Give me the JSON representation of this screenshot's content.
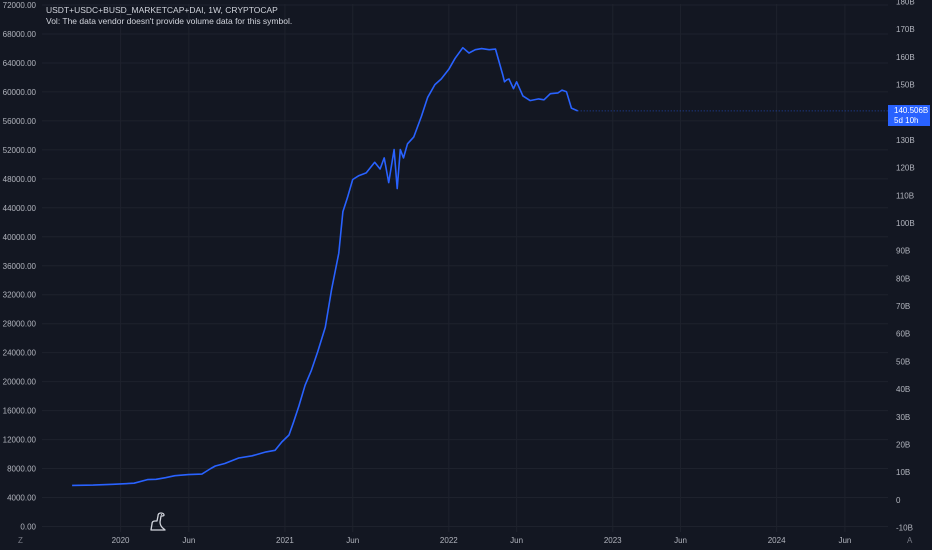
{
  "legend": {
    "symbol_line": "USDT+USDC+BUSD_MARKETCAP+DAI, 1W, CRYPTOCAP",
    "volume_note": "Vol: The data vendor doesn't provide volume data for this symbol."
  },
  "price_badge": {
    "value": "140.506B",
    "countdown": "5d 10h",
    "color": "#2962ff"
  },
  "corner": {
    "left": "Z",
    "right": "A"
  },
  "colors": {
    "background": "#131722",
    "grid": "#1e222d",
    "line": "#2962ff",
    "text": "#b2b5be"
  },
  "icons": {
    "logo": "tradingview-dino-icon"
  },
  "chart_data": {
    "type": "line",
    "x_type": "date",
    "left_axis": {
      "ylim": [
        0,
        72000
      ],
      "ticks": [
        "0.00",
        "4000.00",
        "8000.00",
        "12000.00",
        "16000.00",
        "20000.00",
        "24000.00",
        "28000.00",
        "32000.00",
        "36000.00",
        "40000.00",
        "44000.00",
        "48000.00",
        "52000.00",
        "56000.00",
        "60000.00",
        "64000.00",
        "68000.00",
        "72000.00"
      ]
    },
    "right_axis": {
      "ylim": [
        -10,
        180
      ],
      "ticks": [
        "-10B",
        "0",
        "10B",
        "20B",
        "30B",
        "40B",
        "50B",
        "60B",
        "70B",
        "80B",
        "90B",
        "100B",
        "110B",
        "120B",
        "130B",
        "140B",
        "150B",
        "160B",
        "170B",
        "180B"
      ]
    },
    "x_ticks": [
      {
        "date": "2020-01-01",
        "label": "2020"
      },
      {
        "date": "2020-06-01",
        "label": "Jun"
      },
      {
        "date": "2021-01-01",
        "label": "2021"
      },
      {
        "date": "2021-06-01",
        "label": "Jun"
      },
      {
        "date": "2022-01-01",
        "label": "2022"
      },
      {
        "date": "2022-06-01",
        "label": "Jun"
      },
      {
        "date": "2023-01-01",
        "label": "2023"
      },
      {
        "date": "2023-06-01",
        "label": "Jun"
      },
      {
        "date": "2024-01-01",
        "label": "2024"
      },
      {
        "date": "2024-06-01",
        "label": "Jun"
      }
    ],
    "xlim": [
      "2019-07-10",
      "2024-09-05"
    ],
    "grid": true,
    "series": [
      {
        "x": [
          "2019-09-15",
          "2019-11-01",
          "2019-12-15",
          "2020-01-31",
          "2020-03-01",
          "2020-03-20",
          "2020-04-10",
          "2020-05-01",
          "2020-05-31",
          "2020-06-30",
          "2020-07-20",
          "2020-07-30",
          "2020-08-20",
          "2020-09-20",
          "2020-10-20",
          "2020-11-20",
          "2020-12-10",
          "2020-12-25",
          "2021-01-10",
          "2021-01-20",
          "2021-02-01",
          "2021-02-15",
          "2021-03-01",
          "2021-03-15",
          "2021-04-01",
          "2021-04-15",
          "2021-05-01",
          "2021-05-10",
          "2021-05-20",
          "2021-06-01",
          "2021-06-15",
          "2021-07-01",
          "2021-07-20",
          "2021-08-01",
          "2021-08-10",
          "2021-08-20",
          "2021-09-01",
          "2021-09-08",
          "2021-09-15",
          "2021-09-22",
          "2021-10-01",
          "2021-10-15",
          "2021-11-01",
          "2021-11-15",
          "2021-12-01",
          "2021-12-15",
          "2022-01-01",
          "2022-01-15",
          "2022-02-01",
          "2022-02-15",
          "2022-03-01",
          "2022-03-15",
          "2022-04-01",
          "2022-04-15",
          "2022-05-01",
          "2022-05-05",
          "2022-05-10",
          "2022-05-15",
          "2022-05-25",
          "2022-06-01",
          "2022-06-15",
          "2022-07-01",
          "2022-07-20",
          "2022-08-01",
          "2022-08-15",
          "2022-09-01",
          "2022-09-10",
          "2022-09-20",
          "2022-10-01",
          "2022-10-15"
        ],
        "y": [
          5.2,
          5.3,
          5.6,
          6.0,
          7.3,
          7.4,
          8.0,
          8.7,
          9.1,
          9.3,
          11.3,
          12.2,
          13.1,
          15.1,
          15.9,
          17.3,
          17.9,
          20.9,
          23.4,
          28.0,
          33.9,
          41.4,
          46.8,
          53.5,
          62.3,
          76.0,
          89.1,
          104.1,
          109.1,
          115.7,
          117.1,
          118.1,
          121.9,
          119.5,
          123.5,
          114.6,
          126.5,
          112.4,
          126.5,
          123.5,
          128.6,
          131.1,
          138.5,
          145.4,
          150.0,
          152.0,
          155.5,
          159.5,
          163.3,
          161.4,
          162.6,
          163.0,
          162.6,
          162.8,
          153.6,
          151.0,
          151.7,
          152.0,
          148.5,
          151.0,
          145.9,
          144.2,
          144.8,
          144.5,
          146.7,
          147.0,
          148.0,
          147.4,
          141.5,
          140.5
        ]
      }
    ]
  }
}
